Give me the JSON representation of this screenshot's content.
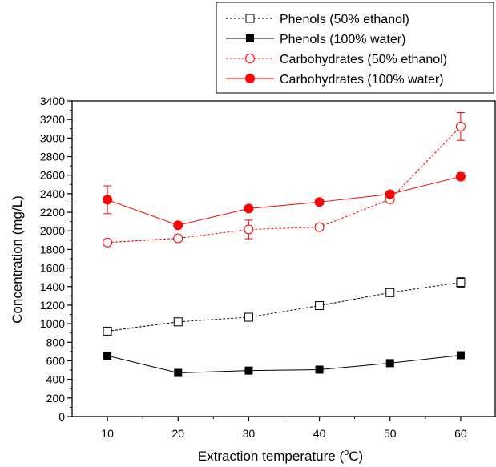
{
  "chart_data": {
    "type": "line",
    "xlabel": "Extraction temperature (",
    "xlabel_sup": "o",
    "xlabel_end": "C)",
    "ylabel": "Concentration (mg/L)",
    "x": [
      10,
      20,
      30,
      40,
      50,
      60
    ],
    "xlim": [
      5,
      65
    ],
    "ylim": [
      0,
      3400
    ],
    "x_ticks": [
      10,
      20,
      30,
      40,
      50,
      60
    ],
    "y_ticks": [
      0,
      200,
      400,
      600,
      800,
      1000,
      1200,
      1400,
      1600,
      1800,
      2000,
      2200,
      2400,
      2600,
      2800,
      3000,
      3200,
      3400
    ],
    "grid": false,
    "legend_position": "top-right",
    "series": [
      {
        "name": "Phenols (50% ethanol)",
        "color": "#000000",
        "marker": "open-square",
        "line": "dashed",
        "values": [
          920,
          1020,
          1070,
          1195,
          1335,
          1445
        ],
        "errors": [
          30,
          30,
          30,
          30,
          30,
          50
        ]
      },
      {
        "name": "Phenols (100% water)",
        "color": "#000000",
        "marker": "filled-square",
        "line": "solid",
        "values": [
          655,
          470,
          495,
          505,
          575,
          660
        ],
        "errors": [
          0,
          0,
          0,
          0,
          0,
          0
        ]
      },
      {
        "name": "Carbohydrates (50% ethanol)",
        "color": "#ff0000",
        "marker": "open-circle",
        "line": "dashed",
        "values": [
          1875,
          1920,
          2015,
          2040,
          2340,
          3125
        ],
        "errors": [
          30,
          30,
          100,
          30,
          30,
          150
        ]
      },
      {
        "name": "Carbohydrates (100% water)",
        "color": "#ff0000",
        "marker": "filled-circle",
        "line": "solid",
        "values": [
          2335,
          2060,
          2240,
          2310,
          2395,
          2585
        ],
        "errors": [
          150,
          0,
          0,
          0,
          0,
          40
        ]
      }
    ]
  }
}
